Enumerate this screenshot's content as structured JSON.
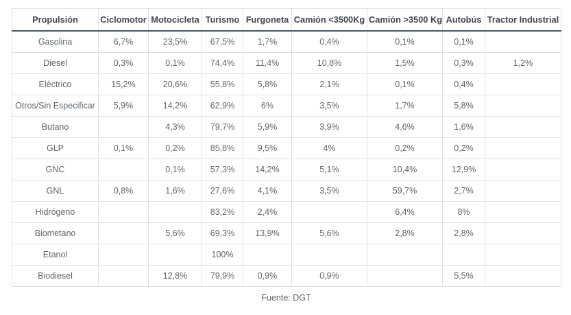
{
  "colors": {
    "header_rule": "#4a5663",
    "grid_line": "#dee2e6",
    "header_text": "#40474e",
    "body_text": "#5d656c"
  },
  "chart_data": {
    "type": "table",
    "columns": [
      "Propulsión",
      "Ciclomotor",
      "Motocicleta",
      "Turismo",
      "Furgoneta",
      "Camión <3500Kg",
      "Camión >3500 Kg",
      "Autobús",
      "Tractor Industrial"
    ],
    "rows": [
      {
        "label": "Gasolina",
        "values": [
          "6,7%",
          "23,5%",
          "67,5%",
          "1,7%",
          "0,4%",
          "0,1%",
          "0,1%",
          ""
        ]
      },
      {
        "label": "Diesel",
        "values": [
          "0,3%",
          "0,1%",
          "74,4%",
          "11,4%",
          "10,8%",
          "1,5%",
          "0,3%",
          "1,2%"
        ]
      },
      {
        "label": "Eléctrico",
        "values": [
          "15,2%",
          "20,6%",
          "55,8%",
          "5,8%",
          "2,1%",
          "0,1%",
          "0,4%",
          ""
        ]
      },
      {
        "label": "Otros/Sin Especificar",
        "values": [
          "5,9%",
          "14,2%",
          "62,9%",
          "6%",
          "3,5%",
          "1,7%",
          "5,8%",
          ""
        ]
      },
      {
        "label": "Butano",
        "values": [
          "",
          "4,3%",
          "79,7%",
          "5,9%",
          "3,9%",
          "4,6%",
          "1,6%",
          ""
        ]
      },
      {
        "label": "GLP",
        "values": [
          "0,1%",
          "0,2%",
          "85,8%",
          "9,5%",
          "4%",
          "0,2%",
          "0,2%",
          ""
        ]
      },
      {
        "label": "GNC",
        "values": [
          "",
          "0,1%",
          "57,3%",
          "14,2%",
          "5,1%",
          "10,4%",
          "12,9%",
          ""
        ]
      },
      {
        "label": "GNL",
        "values": [
          "0,8%",
          "1,6%",
          "27,6%",
          "4,1%",
          "3,5%",
          "59,7%",
          "2,7%",
          ""
        ]
      },
      {
        "label": "Hidrógeno",
        "values": [
          "",
          "",
          "83,2%",
          "2,4%",
          "",
          "6,4%",
          "8%",
          ""
        ]
      },
      {
        "label": "Biometano",
        "values": [
          "",
          "5,6%",
          "69,3%",
          "13,9%",
          "5,6%",
          "2,8%",
          "2,8%",
          ""
        ]
      },
      {
        "label": "Etanol",
        "values": [
          "",
          "",
          "100%",
          "",
          "",
          "",
          "",
          ""
        ]
      },
      {
        "label": "Biodiesel",
        "values": [
          "",
          "12,8%",
          "79,9%",
          "0,9%",
          "0,9%",
          "",
          "5,5%",
          ""
        ]
      }
    ],
    "source": "Fuente: DGT"
  }
}
